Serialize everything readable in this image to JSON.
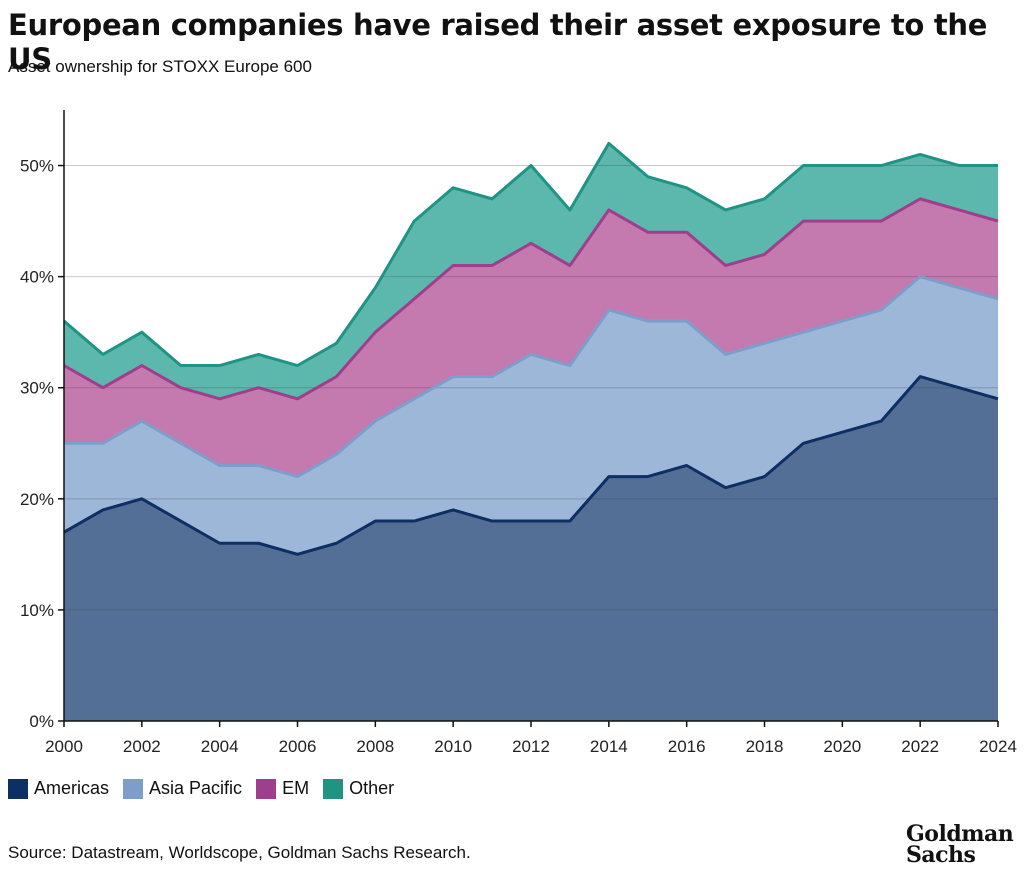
{
  "header": {
    "title": "European companies have raised their asset exposure to the US",
    "subtitle": "Asset ownership for STOXX Europe 600"
  },
  "footer": {
    "source": "Source: Datastream, Worldscope, Goldman Sachs Research.",
    "logo_line1": "Goldman",
    "logo_line2": "Sachs"
  },
  "chart_data": {
    "type": "area",
    "stacked": true,
    "title": "European companies have raised their asset exposure to the US",
    "subtitle": "Asset ownership for STOXX Europe 600",
    "xlabel": "",
    "ylabel": "",
    "x": [
      2000,
      2001,
      2002,
      2003,
      2004,
      2005,
      2006,
      2007,
      2008,
      2009,
      2010,
      2011,
      2012,
      2013,
      2014,
      2015,
      2016,
      2017,
      2018,
      2019,
      2020,
      2021,
      2022,
      2023,
      2024
    ],
    "xticks": [
      "2000",
      "2002",
      "2004",
      "2006",
      "2008",
      "2010",
      "2012",
      "2014",
      "2016",
      "2018",
      "2020",
      "2022",
      "2024"
    ],
    "yticks": [
      "0%",
      "10%",
      "20%",
      "30%",
      "40%",
      "50%"
    ],
    "ylim": [
      0,
      55
    ],
    "grid": true,
    "legend_position": "bottom-left",
    "series": [
      {
        "name": "Americas",
        "color": "#0d2f63",
        "fill": "#536f95",
        "values": [
          17,
          19,
          20,
          18,
          16,
          16,
          15,
          16,
          18,
          18,
          19,
          18,
          18,
          18,
          22,
          22,
          23,
          21,
          22,
          25,
          26,
          27,
          31,
          30,
          29
        ]
      },
      {
        "name": "Asia Pacific",
        "color": "#7d9ecb",
        "fill": "#9db7d8",
        "values": [
          8,
          6,
          7,
          7,
          7,
          7,
          7,
          8,
          9,
          11,
          12,
          13,
          15,
          14,
          15,
          14,
          13,
          12,
          12,
          10,
          10,
          10,
          9,
          9,
          9
        ]
      },
      {
        "name": "EM",
        "color": "#a03e8e",
        "fill": "#c47aae",
        "values": [
          7,
          5,
          5,
          5,
          6,
          7,
          7,
          7,
          8,
          9,
          10,
          10,
          10,
          9,
          9,
          8,
          8,
          8,
          8,
          10,
          9,
          8,
          7,
          7,
          7
        ]
      },
      {
        "name": "Other",
        "color": "#1f9484",
        "fill": "#5cb8ad",
        "values": [
          4,
          3,
          3,
          2,
          3,
          3,
          3,
          3,
          4,
          7,
          7,
          6,
          7,
          5,
          6,
          5,
          4,
          5,
          5,
          5,
          5,
          5,
          4,
          4,
          5
        ]
      }
    ]
  }
}
